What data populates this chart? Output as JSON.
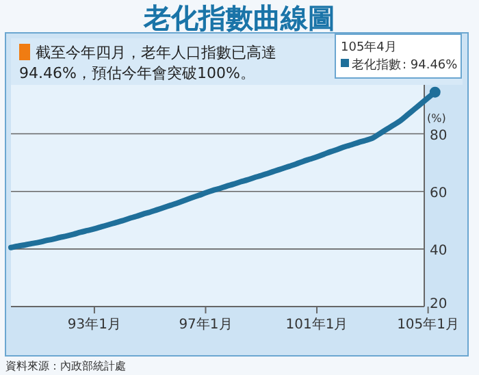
{
  "chart_data": {
    "type": "line",
    "title": "老化指數曲線圖",
    "subtitle": "截至今年四月，老年人口指數已高達94.46%，預估今年會突破100%。",
    "categories": [
      null,
      null,
      null,
      null,
      null,
      null,
      null,
      null,
      null,
      null,
      null,
      null,
      "93年1月",
      null,
      null,
      null,
      null,
      null,
      null,
      null,
      null,
      null,
      null,
      null,
      null,
      null,
      null,
      null,
      "97年1月",
      null,
      null,
      null,
      null,
      null,
      null,
      null,
      null,
      null,
      null,
      null,
      null,
      null,
      null,
      null,
      "101年1月",
      null,
      null,
      null,
      null,
      null,
      null,
      null,
      null,
      null,
      null,
      null,
      null,
      null,
      null,
      null,
      "105年1月",
      null
    ],
    "series": [
      {
        "name": "老化指數",
        "color": "#1f6f9a",
        "values": [
          40.5,
          41.0,
          41.4,
          41.9,
          42.3,
          42.9,
          43.4,
          44.0,
          44.5,
          45.1,
          45.8,
          46.4,
          47,
          47.7,
          48.4,
          49.1,
          49.8,
          50.6,
          51.3,
          52.1,
          52.8,
          53.6,
          54.4,
          55.2,
          56,
          56.9,
          57.8,
          58.6,
          59.5,
          60.3,
          61,
          61.8,
          62.5,
          63.3,
          64,
          64.8,
          65.5,
          66.3,
          67.1,
          67.9,
          68.7,
          69.5,
          70.4,
          71.2,
          72,
          72.9,
          73.8,
          74.6,
          75.5,
          76.2,
          77,
          77.7,
          78.5,
          80,
          81.5,
          83,
          84.5,
          86.5,
          88.5,
          90.5,
          92.5,
          94.46
        ],
        "value_labels": [
          null,
          null,
          null,
          null,
          null,
          null,
          null,
          null,
          null,
          null,
          null,
          null,
          null,
          null,
          null,
          null,
          null,
          null,
          null,
          null,
          null,
          null,
          null,
          null,
          null,
          null,
          null,
          null,
          null,
          null,
          null,
          null,
          null,
          null,
          null,
          null,
          null,
          null,
          null,
          null,
          null,
          null,
          null,
          null,
          null,
          null,
          null,
          null,
          null,
          null,
          null,
          null,
          null,
          null,
          null,
          null,
          null,
          null,
          null,
          null,
          null,
          ": 94.46%"
        ]
      }
    ],
    "ylim": [
      20,
      97
    ],
    "yticks": [
      20,
      40,
      60,
      80
    ],
    "ylabel": "(%)",
    "grid": "y",
    "legend": "top right",
    "annotations": [
      "105年4月",
      "資料來源：內政部統計處"
    ]
  }
}
